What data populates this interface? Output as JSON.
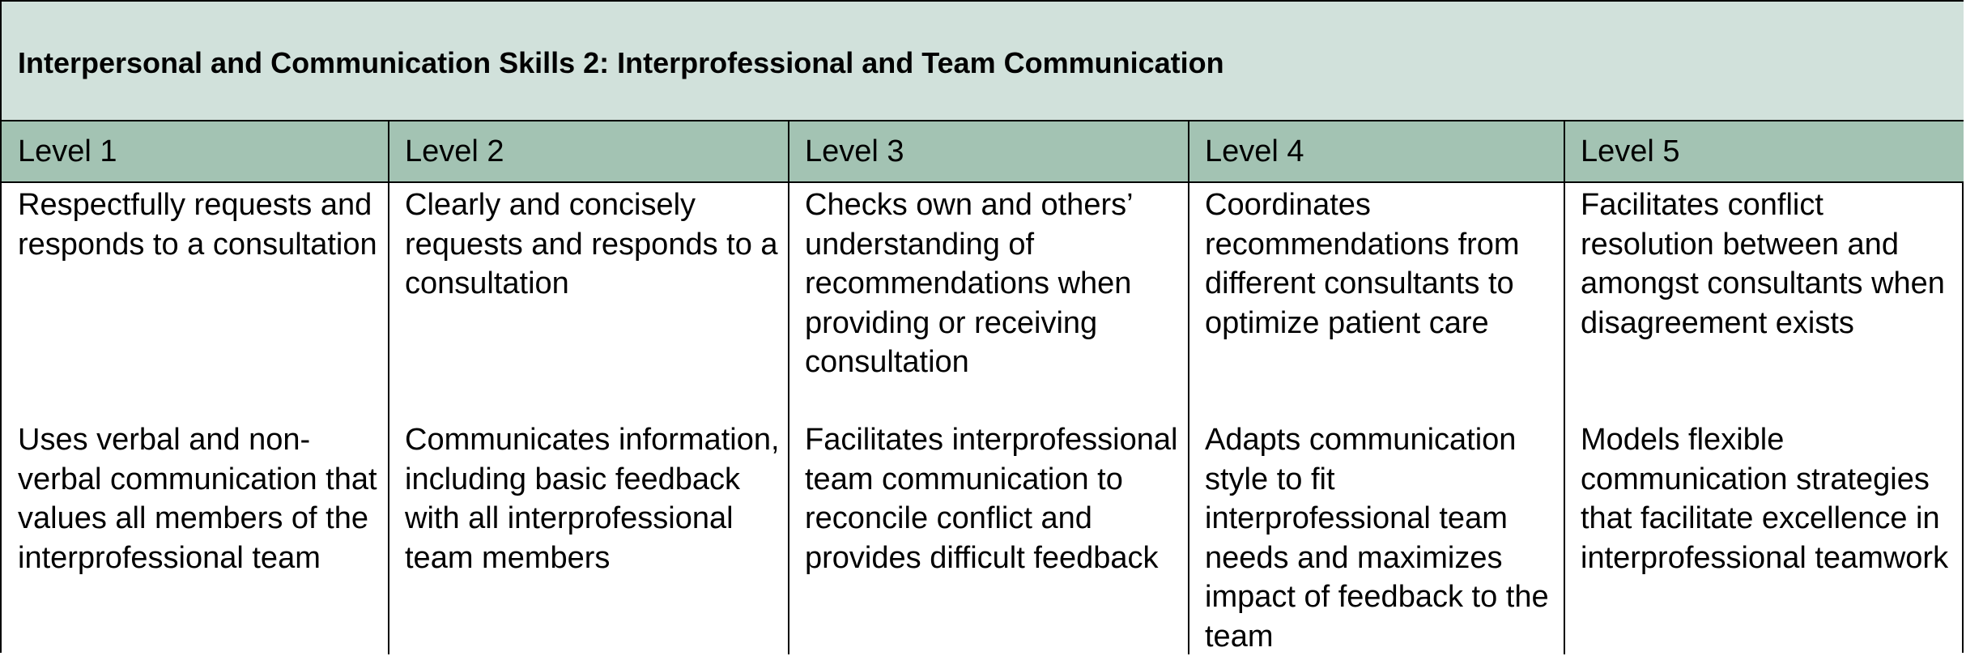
{
  "title": "Interpersonal and Communication Skills 2: Interprofessional and Team Communication",
  "levels": [
    "Level 1",
    "Level 2",
    "Level 3",
    "Level 4",
    "Level 5"
  ],
  "rows": [
    [
      "Respectfully requests and responds to a consultation",
      "Clearly and concisely requests and responds to a consultation",
      "Checks own and others’ understanding of recommendations when providing or receiving consultation",
      "Coordinates recommendations from different consultants to optimize patient care",
      "Facilitates conflict resolution between and amongst consultants when disagreement exists"
    ],
    [
      "Uses verbal and non-verbal communication that values all members of the interprofessional team",
      "Communicates information, including basic feedback with all interprofessional team members",
      "Facilitates interprofessional team communication to reconcile conflict and provides difficult feedback",
      "Adapts communication style to fit interprofessional team needs and maximizes impact of feedback to the team",
      "Models flexible communication strategies that facilitate excellence in interprofessional teamwork"
    ]
  ]
}
